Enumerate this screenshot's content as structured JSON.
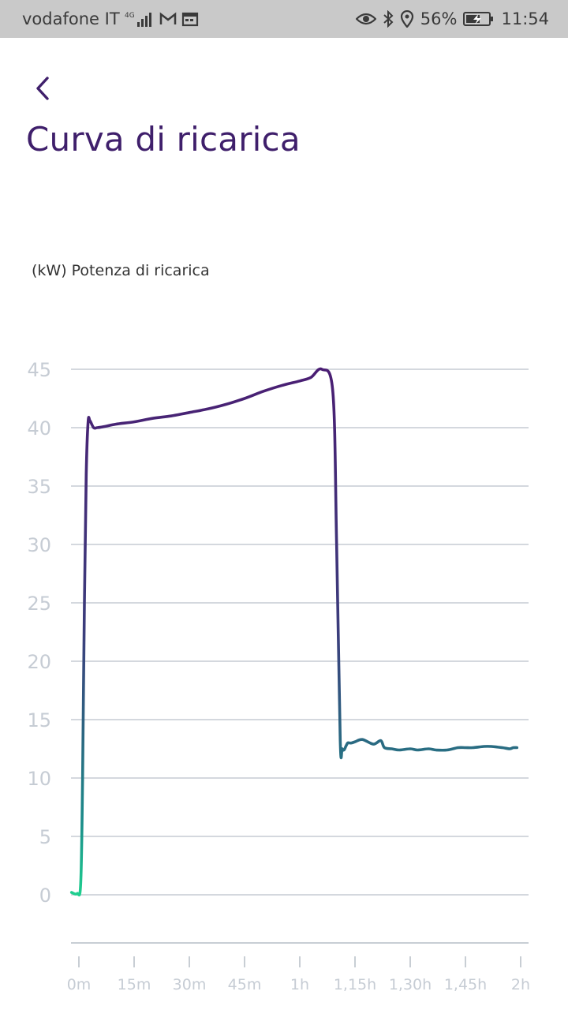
{
  "status_bar": {
    "carrier": "vodafone IT",
    "network_type": "4G",
    "battery_percent": "56%",
    "time": "11:54",
    "icons": [
      "signal-icon",
      "gmail-icon",
      "calendar-icon",
      "eye-icon",
      "bluetooth-icon",
      "location-icon",
      "battery-charging-icon"
    ]
  },
  "header": {
    "back_icon": "chevron-left-icon",
    "title": "Curva di ricarica"
  },
  "chart_label": "(kW) Potenza di ricarica",
  "colors": {
    "title": "#3f1f6b",
    "line_high": "#4a1e73",
    "line_mid": "#2a6a82",
    "line_low": "#1fcf8f",
    "grid": "#c5ccd3"
  },
  "chart_data": {
    "type": "line",
    "title": "",
    "xlabel": "",
    "ylabel": "(kW) Potenza di ricarica",
    "ylim": [
      0,
      45
    ],
    "yticks": [
      "0",
      "5",
      "10",
      "15",
      "20",
      "25",
      "30",
      "35",
      "40",
      "45"
    ],
    "xticks": [
      "0m",
      "15m",
      "30m",
      "45m",
      "1h",
      "1,15h",
      "1,30h",
      "1,45h",
      "2h"
    ],
    "xlim_minutes": [
      -2,
      120
    ],
    "grid": true,
    "series": [
      {
        "x_minutes": [
          -2,
          -0.5,
          0.5,
          1,
          1.5,
          2,
          2.5,
          3,
          4,
          5,
          7,
          10,
          15,
          20,
          25,
          30,
          35,
          40,
          45,
          50,
          55,
          60,
          63,
          66,
          69,
          70,
          71,
          71.5,
          72,
          72.5,
          73,
          73.5,
          74,
          75,
          77,
          80,
          82,
          83,
          85,
          87,
          90,
          92,
          95,
          97,
          100,
          103,
          105,
          107,
          110,
          112,
          115,
          117,
          118,
          119
        ],
        "y_kw": [
          0.2,
          0.1,
          1.0,
          10,
          25,
          36,
          40.5,
          40.6,
          40.0,
          40.0,
          40.1,
          40.3,
          40.5,
          40.8,
          41.0,
          41.3,
          41.6,
          42.0,
          42.5,
          43.1,
          43.6,
          44.0,
          44.3,
          45.0,
          43.0,
          30,
          13.2,
          12.5,
          12.4,
          12.7,
          13.0,
          13.0,
          13.0,
          13.1,
          13.3,
          12.9,
          13.2,
          12.6,
          12.5,
          12.4,
          12.5,
          12.4,
          12.5,
          12.4,
          12.4,
          12.6,
          12.6,
          12.6,
          12.7,
          12.7,
          12.6,
          12.5,
          12.6,
          12.6
        ]
      }
    ]
  }
}
